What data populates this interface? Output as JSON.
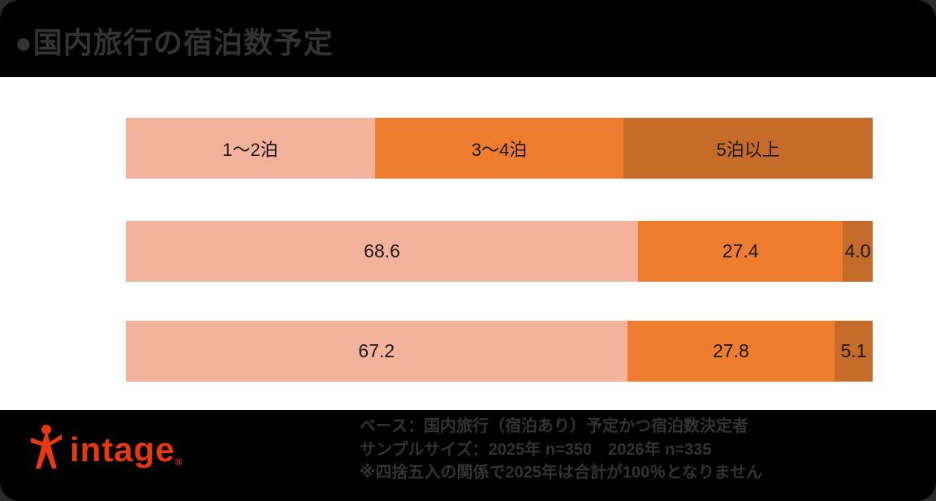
{
  "title": "●国内旅行の宿泊数予定",
  "colors": {
    "background": "#000000",
    "panel": "#ffffff",
    "segments": [
      "#F3B29B",
      "#EE7D2F",
      "#C66C2B"
    ],
    "label_text": "#1a1a1a",
    "muted_text": "#333333",
    "logo_red": "#E8380D"
  },
  "chart_data": {
    "type": "bar",
    "orientation": "horizontal",
    "stacked": true,
    "title": "国内旅行の宿泊数予定",
    "categories": [
      "1〜2泊",
      "3〜4泊",
      "5泊以上"
    ],
    "rows": [
      {
        "values": [
          68.6,
          27.4,
          4.0
        ]
      },
      {
        "values": [
          67.2,
          27.8,
          5.1
        ]
      }
    ],
    "xlim": [
      0,
      100
    ],
    "value_unit": "%",
    "legend_position": "top"
  },
  "footer": {
    "line1": "ベース：国内旅行（宿泊あり）予定かつ宿泊数決定者",
    "line2": "サンプルサイズ：2025年 n=350　2026年 n=335",
    "line3": "※四捨五入の関係で2025年は合計が100％となりません"
  },
  "logo": {
    "text": "intage",
    "registered": "®"
  }
}
